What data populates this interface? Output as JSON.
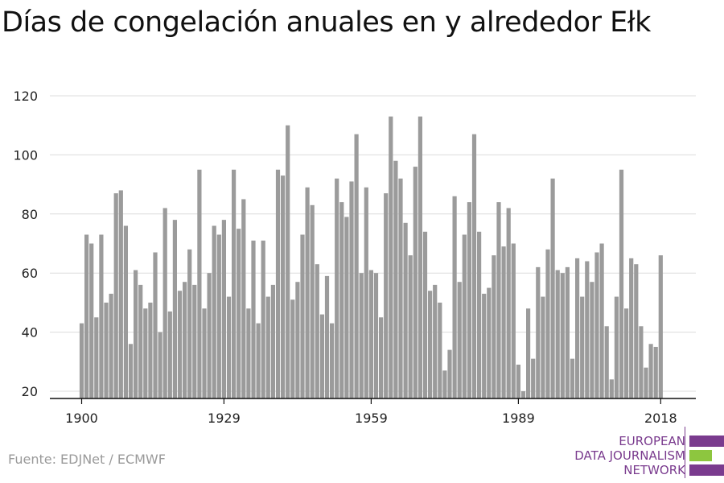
{
  "title": "Días de congelación anuales en y alrededor Ełk",
  "source": "Fuente: EDJNet / ECMWF",
  "logo": {
    "line1": "EUROPEAN",
    "line2": "DATA JOURNALISM",
    "line3": "NETWORK",
    "colors": {
      "purple": "#7a3b8e",
      "green": "#8dc63f"
    }
  },
  "chart_data": {
    "type": "bar",
    "title": "Días de congelación anuales en y alrededor Ełk",
    "xlabel": "",
    "ylabel": "",
    "x_ticks": [
      1900,
      1929,
      1959,
      1989,
      2018
    ],
    "y_ticks": [
      20,
      40,
      60,
      80,
      100,
      120
    ],
    "ylim": [
      17,
      122
    ],
    "grid": "horizontal",
    "bar_color": "#9b9b9b",
    "x": [
      1900,
      1901,
      1902,
      1903,
      1904,
      1905,
      1906,
      1907,
      1908,
      1909,
      1910,
      1911,
      1912,
      1913,
      1914,
      1915,
      1916,
      1917,
      1918,
      1919,
      1920,
      1921,
      1922,
      1923,
      1924,
      1925,
      1926,
      1927,
      1928,
      1929,
      1930,
      1931,
      1932,
      1933,
      1934,
      1935,
      1936,
      1937,
      1938,
      1939,
      1940,
      1941,
      1942,
      1943,
      1944,
      1945,
      1946,
      1947,
      1948,
      1949,
      1950,
      1951,
      1952,
      1953,
      1954,
      1955,
      1956,
      1957,
      1958,
      1959,
      1960,
      1961,
      1962,
      1963,
      1964,
      1965,
      1966,
      1967,
      1968,
      1969,
      1970,
      1971,
      1972,
      1973,
      1974,
      1975,
      1976,
      1977,
      1978,
      1979,
      1980,
      1981,
      1982,
      1983,
      1984,
      1985,
      1986,
      1987,
      1988,
      1989,
      1990,
      1991,
      1992,
      1993,
      1994,
      1995,
      1996,
      1997,
      1998,
      1999,
      2000,
      2001,
      2002,
      2003,
      2004,
      2005,
      2006,
      2007,
      2008,
      2009,
      2010,
      2011,
      2012,
      2013,
      2014,
      2015,
      2016,
      2017,
      2018
    ],
    "values": [
      43,
      73,
      70,
      45,
      73,
      50,
      53,
      87,
      88,
      76,
      36,
      61,
      56,
      48,
      50,
      67,
      40,
      82,
      47,
      78,
      54,
      57,
      68,
      56,
      95,
      48,
      60,
      76,
      73,
      78,
      52,
      95,
      75,
      85,
      48,
      71,
      43,
      71,
      52,
      56,
      95,
      93,
      110,
      51,
      57,
      73,
      89,
      83,
      63,
      46,
      59,
      43,
      92,
      84,
      79,
      91,
      107,
      60,
      89,
      61,
      60,
      45,
      87,
      113,
      98,
      92,
      77,
      66,
      96,
      113,
      74,
      54,
      56,
      50,
      27,
      34,
      86,
      57,
      73,
      84,
      107,
      74,
      53,
      55,
      66,
      84,
      69,
      82,
      70,
      29,
      20,
      48,
      31,
      62,
      52,
      68,
      92,
      61,
      60,
      62,
      31,
      65,
      52,
      64,
      57,
      67,
      70,
      42,
      24,
      52,
      95,
      48,
      65,
      63,
      42,
      28,
      36,
      35,
      66
    ]
  }
}
